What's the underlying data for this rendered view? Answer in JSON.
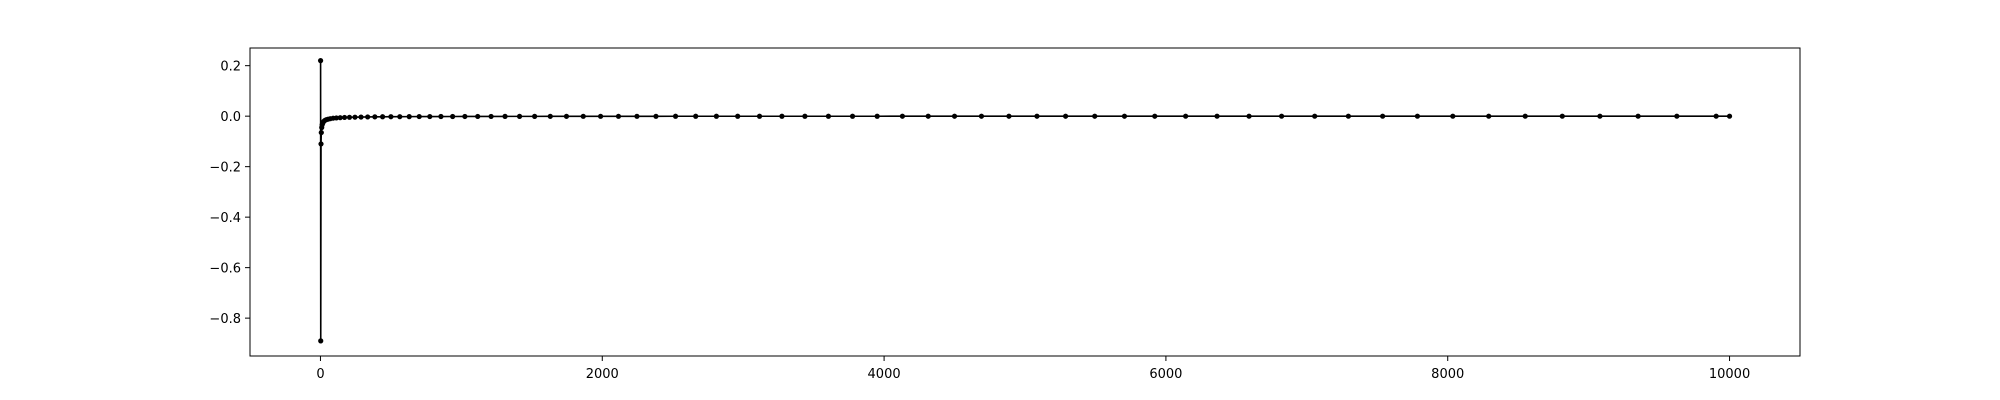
{
  "chart_data": {
    "type": "line",
    "title": "",
    "xlabel": "",
    "ylabel": "",
    "xlim": [
      -500,
      10500
    ],
    "ylim": [
      -0.95,
      0.27
    ],
    "grid": false,
    "legend": "none",
    "x_ticks": [
      0,
      2000,
      4000,
      6000,
      8000,
      10000
    ],
    "x_tick_labels": [
      "0",
      "2000",
      "4000",
      "6000",
      "8000",
      "10000"
    ],
    "y_ticks": [
      0.2,
      0.0,
      -0.2,
      -0.4,
      -0.6,
      -0.8
    ],
    "y_tick_labels": [
      "0.2",
      "0.0",
      "−0.2",
      "−0.4",
      "−0.6",
      "−0.8"
    ],
    "series": [
      {
        "color": "#000000",
        "marker": "dot",
        "x": [
          1,
          2,
          4,
          6,
          9,
          12,
          17,
          23,
          31,
          41,
          54,
          70,
          90,
          113,
          140,
          171,
          206,
          245,
          288,
          335,
          386,
          441,
          500,
          563,
          630,
          701,
          776,
          855,
          938,
          1025,
          1116,
          1211,
          1310,
          1413,
          1520,
          1631,
          1746,
          1865,
          1988,
          2115,
          2246,
          2381,
          2520,
          2663,
          2810,
          2961,
          3116,
          3275,
          3438,
          3605,
          3776,
          3951,
          4130,
          4313,
          4500,
          4691,
          4886,
          5085,
          5288,
          5495,
          5706,
          5921,
          6140,
          6363,
          6590,
          6821,
          7056,
          7295,
          7538,
          7785,
          8036,
          8291,
          8550,
          8813,
          9080,
          9351,
          9626,
          9905,
          10000
        ],
        "y": [
          0.22,
          -0.89,
          -0.11,
          -0.065,
          -0.045,
          -0.034,
          -0.027,
          -0.021,
          -0.017,
          -0.014,
          -0.012,
          -0.01,
          -0.008,
          -0.007,
          -0.006,
          -0.005,
          -0.0045,
          -0.004,
          -0.0035,
          -0.003,
          -0.0027,
          -0.0024,
          -0.0022,
          -0.002,
          -0.0018,
          -0.0016,
          -0.0015,
          -0.0014,
          -0.0013,
          -0.0012,
          -0.0011,
          -0.001,
          -0.0009,
          -0.0008,
          -0.0008,
          -0.0007,
          -0.0007,
          -0.0006,
          -0.0006,
          -0.0005,
          -0.0005,
          -0.0005,
          -0.0004,
          -0.0004,
          -0.0004,
          -0.0004,
          -0.0003,
          -0.0003,
          -0.0003,
          -0.0003,
          -0.0003,
          -0.0003,
          -0.0002,
          -0.0002,
          -0.0002,
          -0.0002,
          -0.0002,
          -0.0002,
          -0.0002,
          -0.0002,
          -0.0002,
          -0.0002,
          -0.0001,
          -0.0001,
          -0.0001,
          -0.0001,
          -0.0001,
          -0.0001,
          -0.0001,
          -0.0001,
          -0.0001,
          -0.0001,
          -0.0001,
          -0.0001,
          -0.0001,
          -0.0001,
          -0.0001,
          -0.0001,
          -0.0001
        ]
      }
    ]
  }
}
